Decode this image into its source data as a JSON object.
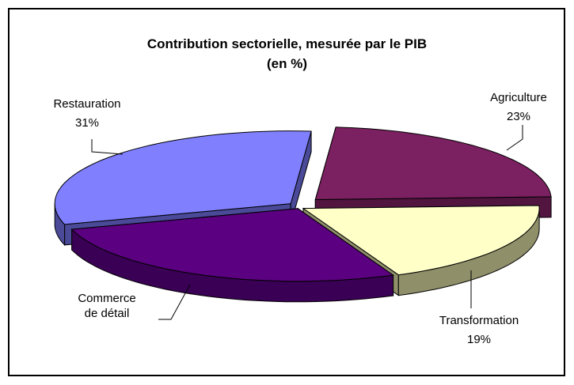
{
  "chart_data": {
    "type": "pie3d",
    "title": "Contribution sectorielle, mesurée  par  le PIB",
    "subtitle": "(en %)",
    "categories": [
      "Agriculture",
      "Transformation",
      "Commerce de détail",
      "Restauration"
    ],
    "values": [
      23,
      19,
      27,
      31
    ],
    "value_labels": [
      "23%",
      "19%",
      null,
      "31%"
    ],
    "colors": [
      "#7b2060",
      "#ffffc8",
      "#5a0080",
      "#8080ff"
    ],
    "side_colors": [
      "#521540",
      "#8f8f6a",
      "#3a0055",
      "#4a4a99"
    ]
  }
}
